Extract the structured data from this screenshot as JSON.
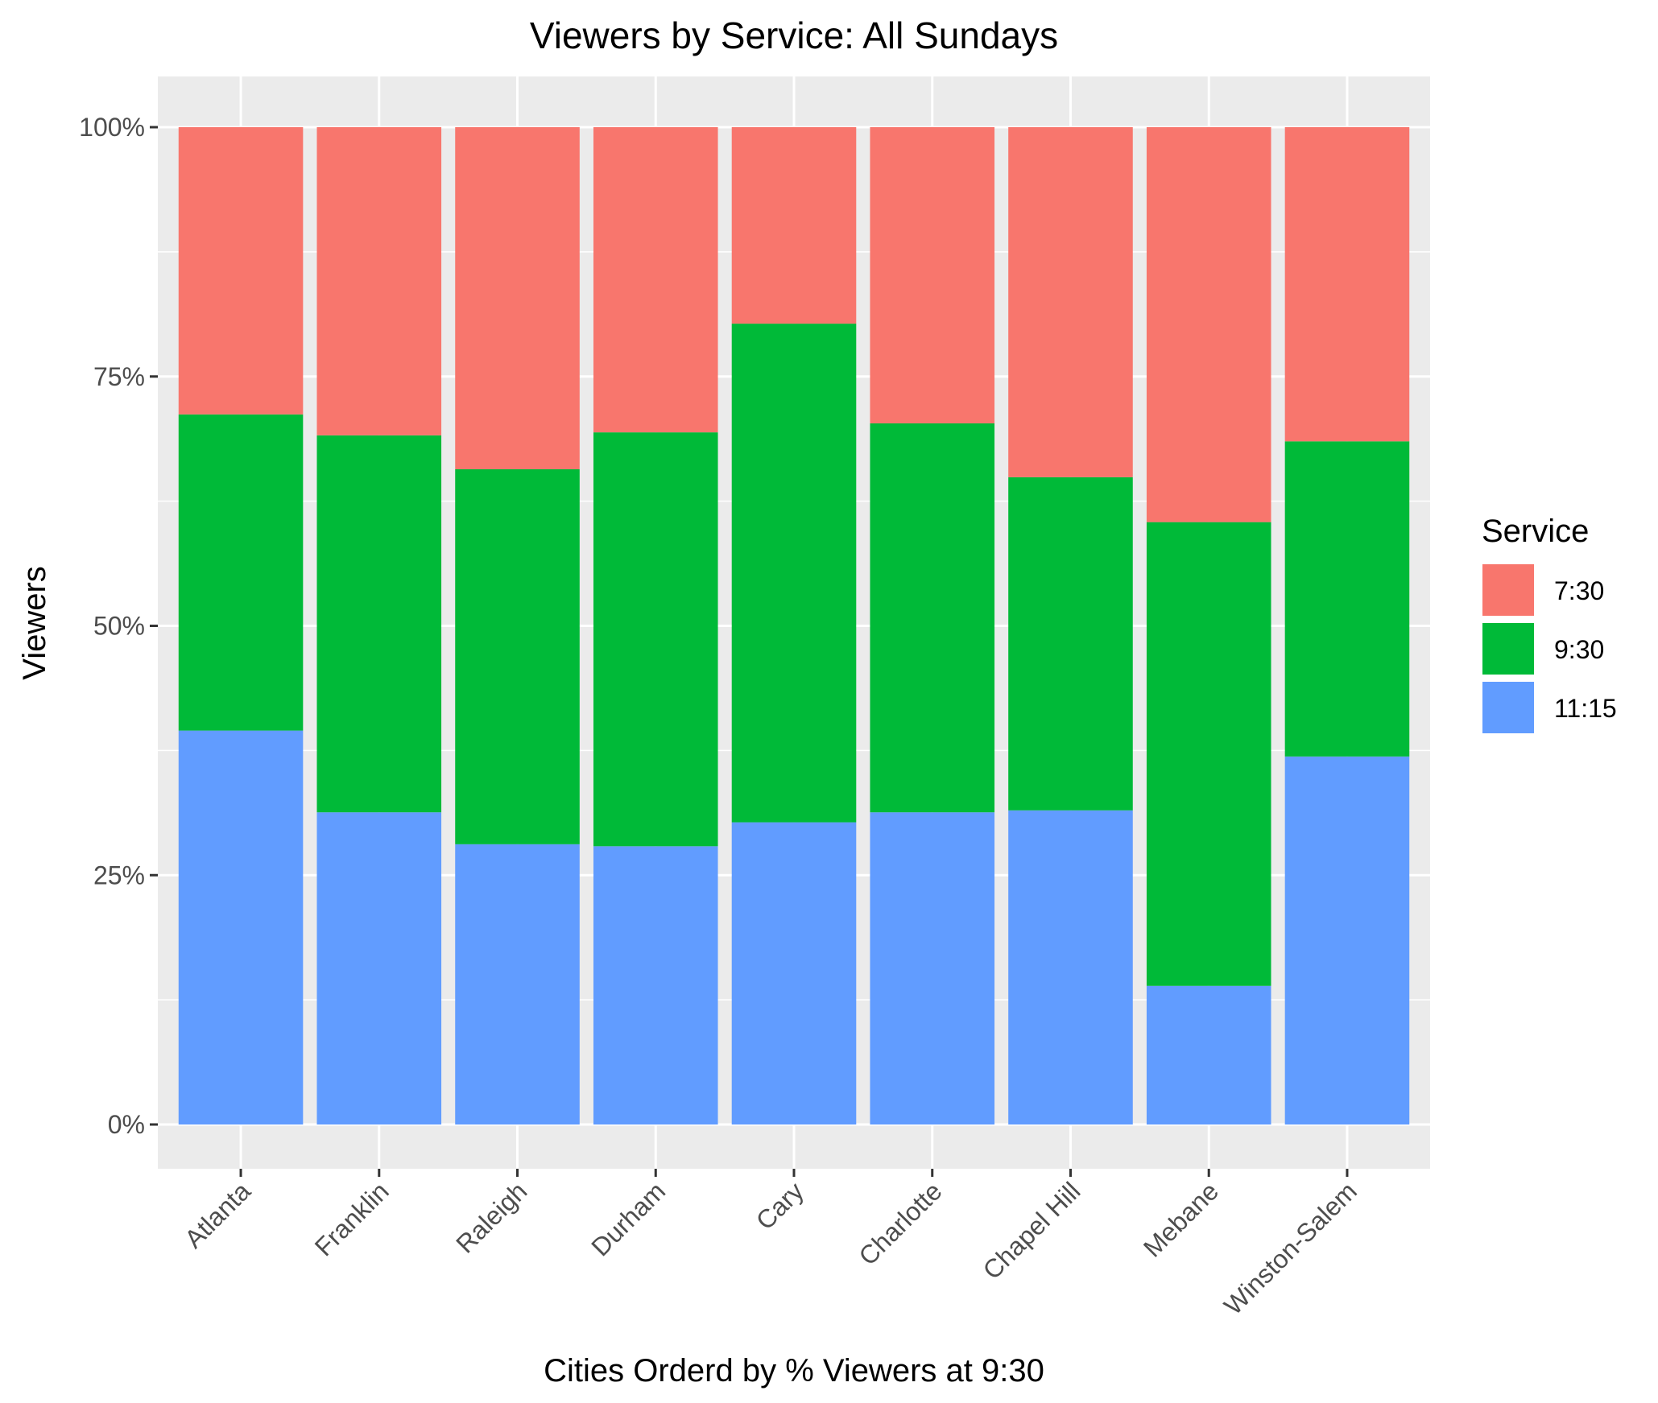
{
  "chart_data": {
    "type": "bar",
    "stacked": true,
    "normalized": true,
    "title": "Viewers by Service: All Sundays",
    "xlabel": "Cities Orderd by % Viewers at 9:30",
    "ylabel": "Viewers",
    "ylim": [
      0,
      1
    ],
    "yticks": [
      {
        "value": 0,
        "label": "0%"
      },
      {
        "value": 0.25,
        "label": "25%"
      },
      {
        "value": 0.5,
        "label": "50%"
      },
      {
        "value": 0.75,
        "label": "75%"
      },
      {
        "value": 1,
        "label": "100%"
      }
    ],
    "categories": [
      "Atlanta",
      "Franklin",
      "Raleigh",
      "Durham",
      "Cary",
      "Charlotte",
      "Chapel Hill",
      "Mebane",
      "Winston-Salem"
    ],
    "series": [
      {
        "name": "11:15",
        "color": "#619CFF",
        "values": [
          0.395,
          0.313,
          0.281,
          0.279,
          0.303,
          0.313,
          0.315,
          0.139,
          0.369
        ]
      },
      {
        "name": "9:30",
        "color": "#00BA38",
        "values": [
          0.317,
          0.378,
          0.376,
          0.415,
          0.5,
          0.39,
          0.334,
          0.465,
          0.316
        ]
      },
      {
        "name": "7:30",
        "color": "#F8766D",
        "values": [
          0.288,
          0.309,
          0.343,
          0.306,
          0.197,
          0.297,
          0.351,
          0.396,
          0.315
        ]
      }
    ],
    "legend": {
      "title": "Service",
      "position": "right",
      "order": [
        "7:30",
        "9:30",
        "11:15"
      ]
    },
    "grid": true,
    "panel_background": "#EBEBEB"
  }
}
